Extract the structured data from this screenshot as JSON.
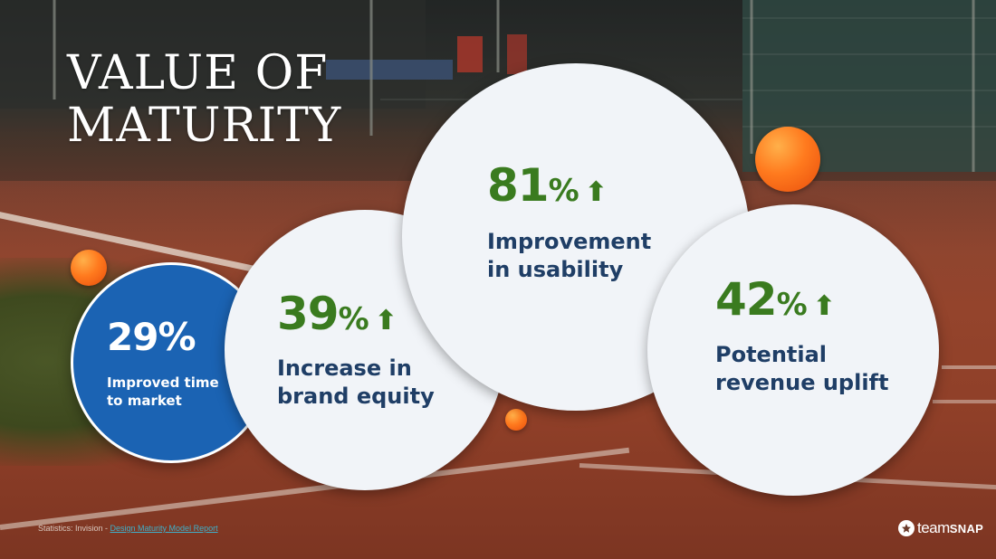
{
  "slide": {
    "title_line1": "VALUE OF",
    "title_line2": "MATURITY"
  },
  "stats": [
    {
      "value": "29%",
      "desc_line1": "Improved time",
      "desc_line2": "to market"
    },
    {
      "value": "39",
      "unit": "%",
      "arrow": "⬆",
      "desc_line1": "Increase in",
      "desc_line2": "brand equity"
    },
    {
      "value": "81",
      "unit": "%",
      "arrow": "⬆",
      "desc_line1": "Improvement",
      "desc_line2": "in usability"
    },
    {
      "value": "42",
      "unit": "%",
      "arrow": "⬆",
      "desc_line1": "Potential",
      "desc_line2": "revenue uplift"
    }
  ],
  "footer": {
    "prefix": "Statistics: Invision - ",
    "link_text": "Design Maturity Model Report"
  },
  "logo": {
    "text_a": "team",
    "text_b": "SNAP",
    "icon": "star-icon"
  },
  "colors": {
    "stat_green": "#3a7b1f",
    "desc_navy": "#1f3e66",
    "blue_circle": "#1b63b3",
    "ball_orange": "#ff7a1e"
  }
}
